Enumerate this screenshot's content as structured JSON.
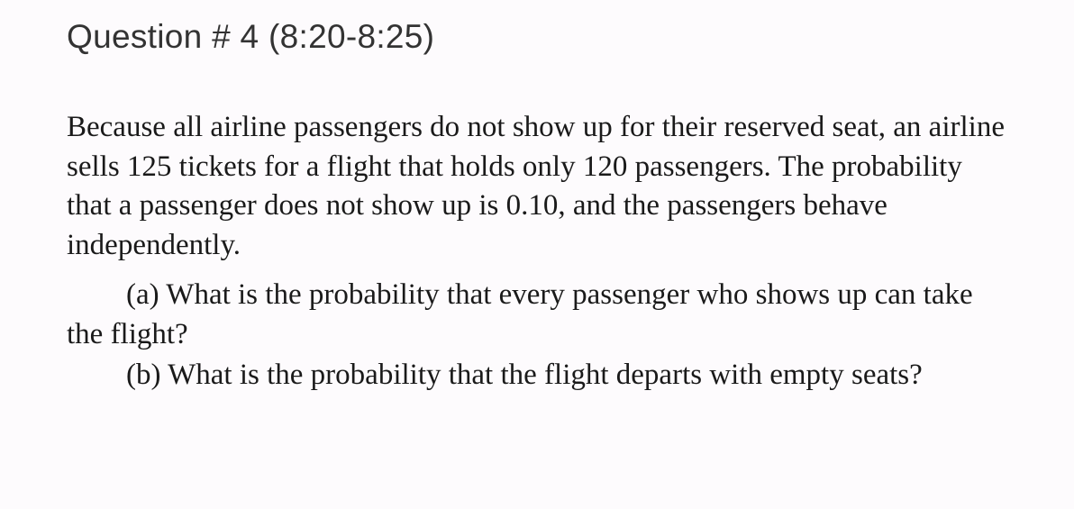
{
  "heading": "Question # 4 (8:20-8:25)",
  "intro": "Because all airline passengers do not show up for their reserved seat, an airline sells 125 tickets for a flight that holds only 120 passengers. The probability that a passenger does not show up is 0.10, and the passengers behave independently.",
  "parts": [
    {
      "label": "(a)",
      "text": "What is the probability that every passenger who shows up can take the flight?"
    },
    {
      "label": "(b)",
      "text": "What is the probability that the flight departs with empty seats?"
    }
  ]
}
